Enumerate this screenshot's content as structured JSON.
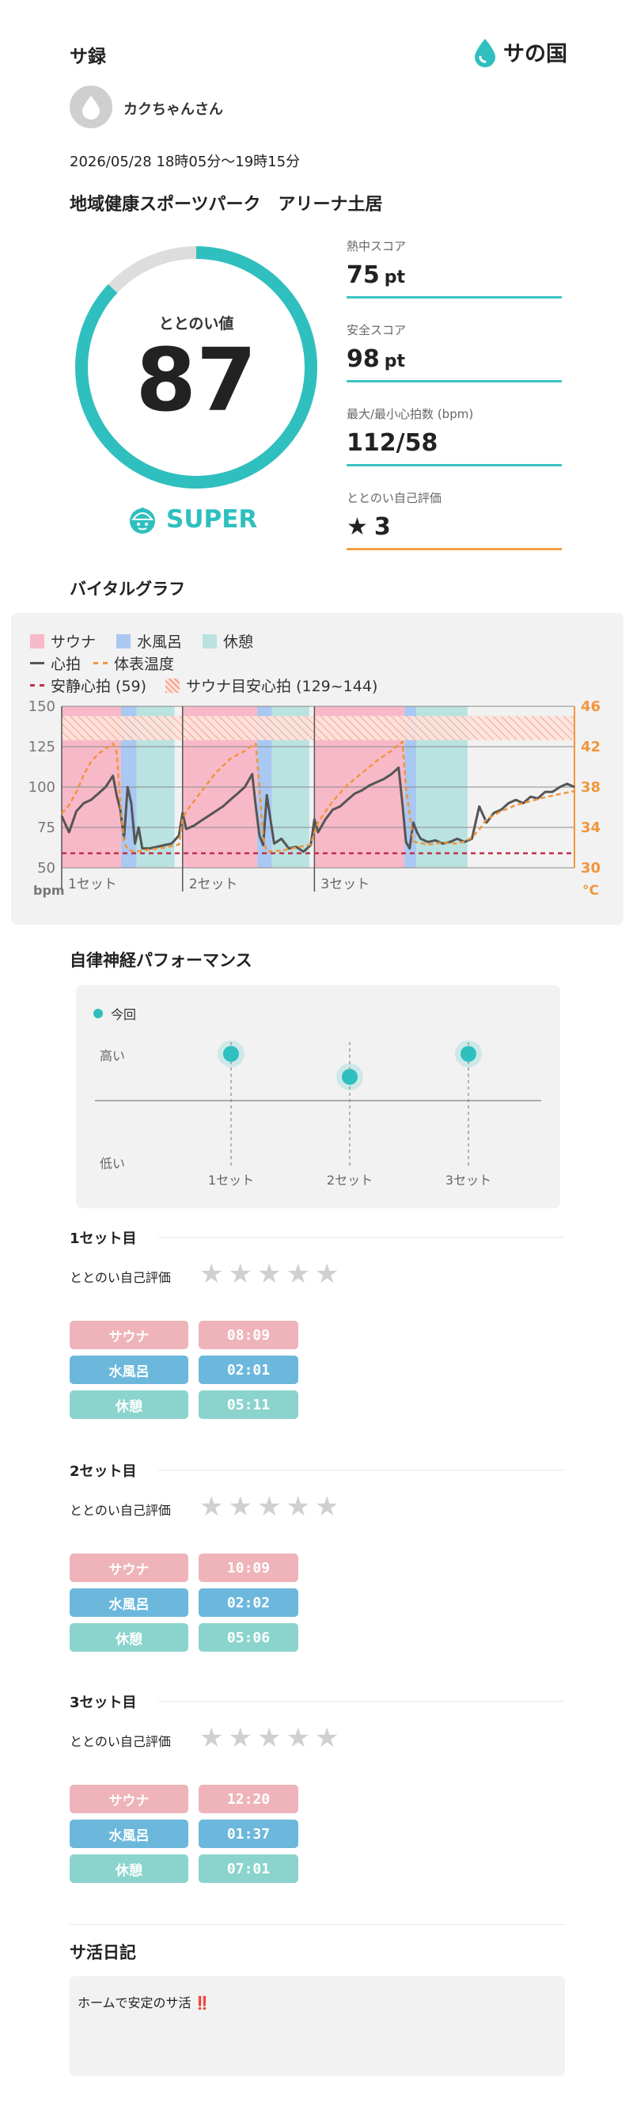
{
  "header": {
    "title": "サ録",
    "brand": "サの国",
    "brand_color": "#3cc3c4"
  },
  "user": {
    "name": "カクちゃんさん",
    "avatar_icon": "water-drop-icon"
  },
  "session": {
    "datetime": "2026/05/28 18時05分〜19時15分",
    "facility": "地域健康スポーツパーク　アリーナ土居"
  },
  "totonoi": {
    "label": "ととのい値",
    "value": "87",
    "level": "SUPER",
    "gauge_fraction": 0.87,
    "ring_color": "#2fbfbf",
    "track_color": "#dddddd"
  },
  "scores": [
    {
      "label": "熱中スコア",
      "value": "75",
      "unit": "pt",
      "color": "#3cc3c4"
    },
    {
      "label": "安全スコア",
      "value": "98",
      "unit": "pt",
      "color": "#3cc3c4"
    },
    {
      "label": "最大/最小心拍数 (bpm)",
      "value": "112/58",
      "unit": "",
      "color": "#3cc3c4"
    },
    {
      "label": "ととのい自己評価",
      "value": "3",
      "unit": "",
      "star": "★",
      "color": "#f0a040"
    }
  ],
  "vital": {
    "title": "バイタルグラフ",
    "legend": {
      "sauna": "サウナ",
      "cold_bath": "水風呂",
      "rest": "休憩",
      "heart_rate": "心拍",
      "body_temp": "体表温度",
      "resting_hr": "安静心拍 (59)",
      "target_hr": "サウナ目安心拍 (129~144)"
    },
    "left_unit": "bpm",
    "right_unit": "°C",
    "left_ticks": [
      "150",
      "125",
      "100",
      "75",
      "50"
    ],
    "right_ticks": [
      "46",
      "42",
      "38",
      "34",
      "30"
    ],
    "set_labels": [
      "1セット",
      "2セット",
      "3セット"
    ],
    "colors": {
      "sauna": "#f7b9c8",
      "cold_bath": "#a9c8f2",
      "rest": "#b9e2e0",
      "heart_rate": "#555555",
      "body_temp": "#f0963c",
      "resting_hr": "#c0304a",
      "target_hr": "#f4a08c"
    }
  },
  "chart_data": {
    "type": "line",
    "x_unit": "minutes from start",
    "xlim": [
      0,
      70
    ],
    "ylim_left": [
      50,
      150
    ],
    "ylim_right": [
      30,
      46
    ],
    "resting_hr": 59,
    "target_hr_range": [
      129,
      144
    ],
    "phases": [
      {
        "type": "サウナ",
        "start": 0,
        "end": 8.1
      },
      {
        "type": "水風呂",
        "start": 8.1,
        "end": 10.2
      },
      {
        "type": "休憩",
        "start": 10.2,
        "end": 15.4
      },
      {
        "type": "サウナ",
        "start": 16.5,
        "end": 26.7
      },
      {
        "type": "水風呂",
        "start": 26.7,
        "end": 28.7
      },
      {
        "type": "休憩",
        "start": 28.7,
        "end": 33.8
      },
      {
        "type": "サウナ",
        "start": 34.5,
        "end": 46.8
      },
      {
        "type": "水風呂",
        "start": 46.8,
        "end": 48.4
      },
      {
        "type": "休憩",
        "start": 48.4,
        "end": 55.4
      }
    ],
    "series": [
      {
        "name": "心拍",
        "x": [
          0,
          1,
          2,
          3,
          4,
          5,
          6,
          7,
          7.5,
          8,
          8.5,
          9,
          9.5,
          10,
          10.5,
          11,
          12,
          13,
          14,
          15,
          16,
          16.5,
          17,
          18,
          19,
          20,
          21,
          22,
          23,
          24,
          25,
          26,
          26.5,
          27,
          27.5,
          28,
          28.5,
          29,
          30,
          31,
          32,
          33,
          34,
          34.5,
          35,
          36,
          37,
          38,
          39,
          40,
          41,
          42,
          43,
          44,
          45,
          46,
          46.5,
          47,
          47.5,
          48,
          48.5,
          49,
          50,
          51,
          52,
          53,
          54,
          55,
          56,
          57,
          58,
          59,
          60,
          61,
          62,
          63,
          64,
          65,
          66,
          67,
          68,
          69,
          70
        ],
        "y": [
          82,
          72,
          85,
          90,
          92,
          96,
          100,
          107,
          95,
          86,
          68,
          100,
          90,
          65,
          75,
          62,
          62,
          63,
          64,
          65,
          70,
          84,
          74,
          76,
          79,
          82,
          85,
          88,
          92,
          96,
          100,
          108,
          88,
          70,
          64,
          95,
          80,
          65,
          68,
          62,
          63,
          60,
          64,
          80,
          72,
          80,
          86,
          88,
          92,
          96,
          98,
          101,
          103,
          105,
          108,
          112,
          90,
          66,
          62,
          78,
          72,
          68,
          66,
          67,
          65,
          66,
          68,
          66,
          68,
          88,
          78,
          84,
          86,
          90,
          92,
          90,
          94,
          93,
          97,
          97,
          100,
          102,
          100
        ]
      },
      {
        "name": "体表温度",
        "x": [
          0,
          1,
          2,
          3,
          4,
          5,
          6,
          7,
          7.5,
          8,
          8.5,
          9,
          10,
          11,
          12,
          14,
          16,
          16.5,
          17,
          19,
          21,
          23,
          25,
          26,
          26.5,
          27,
          27.5,
          28,
          30,
          32,
          34,
          34.5,
          35,
          37,
          39,
          41,
          43,
          45,
          46,
          46.5,
          47,
          48,
          50,
          52,
          54,
          55,
          56,
          57,
          58,
          60,
          62,
          64,
          66,
          68,
          70
        ],
        "y": [
          35.4,
          36.2,
          37.5,
          39.2,
          40.5,
          41.3,
          41.8,
          42.3,
          41.5,
          36.5,
          32.6,
          31.8,
          31.6,
          31.7,
          31.8,
          32.0,
          32.3,
          34.8,
          35.6,
          37.5,
          39.4,
          40.8,
          41.6,
          42.1,
          42.3,
          38.0,
          33.0,
          31.6,
          31.7,
          32.0,
          32.3,
          33.5,
          34.5,
          36.6,
          38.2,
          39.4,
          40.6,
          41.6,
          42.2,
          42.5,
          38.0,
          32.6,
          32.3,
          32.5,
          32.4,
          32.6,
          33.0,
          33.8,
          34.8,
          35.6,
          36.2,
          36.6,
          37.0,
          37.3,
          37.6
        ]
      }
    ]
  },
  "autonomic": {
    "title": "自律神経パフォーマンス",
    "legend_label": "今回",
    "high_label": "高い",
    "low_label": "低い",
    "set_labels": [
      "1セット",
      "2セット",
      "3セット"
    ],
    "levels": [
      0.85,
      0.6,
      0.85
    ],
    "dot_color": "#2fbfbf"
  },
  "sets": [
    {
      "title": "1セット目",
      "rating_label": "ととのい自己評価",
      "rating": 0,
      "rows": [
        {
          "label": "サウナ",
          "time": "08:09"
        },
        {
          "label": "水風呂",
          "time": "02:01"
        },
        {
          "label": "休憩",
          "time": "05:11"
        }
      ]
    },
    {
      "title": "2セット目",
      "rating_label": "ととのい自己評価",
      "rating": 0,
      "rows": [
        {
          "label": "サウナ",
          "time": "10:09"
        },
        {
          "label": "水風呂",
          "time": "02:02"
        },
        {
          "label": "休憩",
          "time": "05:06"
        }
      ]
    },
    {
      "title": "3セット目",
      "rating_label": "ととのい自己評価",
      "rating": 0,
      "rows": [
        {
          "label": "サウナ",
          "time": "12:20"
        },
        {
          "label": "水風呂",
          "time": "01:37"
        },
        {
          "label": "休憩",
          "time": "07:01"
        }
      ]
    }
  ],
  "phase_colors": {
    "サウナ": "#eeb4ba",
    "水風呂": "#6cb8dc",
    "休憩": "#8bd4cd"
  },
  "diary": {
    "title": "サ活日記",
    "text": "ホームで安定のサ活",
    "emoji": "‼️"
  }
}
